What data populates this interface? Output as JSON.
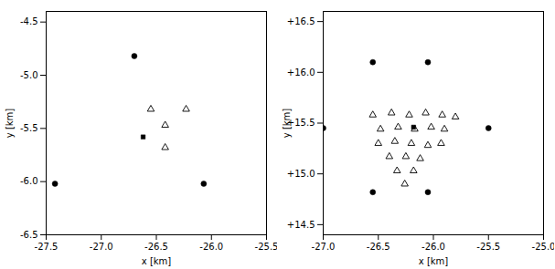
{
  "chart_data": [
    {
      "type": "scatter",
      "xlabel": "x [km]",
      "ylabel": "y [km]",
      "xlim": [
        -27.5,
        -25.5
      ],
      "ylim": [
        -6.5,
        -4.4
      ],
      "xticks": [
        -27.5,
        {
          "value": -27.0,
          "label": "-27.0"
        },
        -26.5,
        {
          "value": -26.0,
          "label": "-26.0"
        },
        -25.5
      ],
      "yticks": [
        -6.5,
        {
          "value": -6.0,
          "label": "-6.0"
        },
        -5.5,
        {
          "value": -5.0,
          "label": "-5.0"
        },
        -4.5
      ],
      "grid": false,
      "series": [
        {
          "marker": "circle",
          "color": "black",
          "x": [
            -26.7,
            -27.42,
            -26.07
          ],
          "values": [
            -4.82,
            -6.02,
            -6.02
          ]
        },
        {
          "marker": "triangle_open",
          "color": "black",
          "x": [
            -26.55,
            -26.42,
            -26.23,
            -26.42
          ],
          "values": [
            -5.32,
            -5.47,
            -5.32,
            -5.68
          ]
        },
        {
          "marker": "square",
          "color": "black",
          "x": [
            -26.62
          ],
          "values": [
            -5.58
          ]
        }
      ]
    },
    {
      "type": "scatter",
      "xlabel": "x [km]",
      "ylabel": "y [km]",
      "xlim": [
        -27.0,
        -25.0
      ],
      "ylim": [
        14.4,
        16.6
      ],
      "xticks": [
        {
          "value": -27.0,
          "label": "-27.0"
        },
        -26.5,
        {
          "value": -26.0,
          "label": "-26.0"
        },
        -25.5,
        {
          "value": -25.0,
          "label": "-25.0"
        }
      ],
      "yticks": [
        {
          "value": 14.5,
          "label": "+14.5"
        },
        {
          "value": 15.0,
          "label": "+15.0"
        },
        {
          "value": 15.5,
          "label": "+15.5"
        },
        {
          "value": 16.0,
          "label": "+16.0"
        },
        {
          "value": 16.5,
          "label": "+16.5"
        }
      ],
      "grid": false,
      "series": [
        {
          "marker": "circle",
          "color": "black",
          "x": [
            -26.55,
            -26.05,
            -27.0,
            -25.5,
            -26.55,
            -26.05
          ],
          "values": [
            16.1,
            16.1,
            15.45,
            15.45,
            14.82,
            14.82
          ]
        },
        {
          "marker": "triangle_open",
          "color": "black",
          "x": [
            -26.55,
            -26.38,
            -26.22,
            -26.07,
            -25.92,
            -25.8,
            -26.48,
            -26.32,
            -26.17,
            -26.02,
            -25.9,
            -26.5,
            -26.35,
            -26.2,
            -26.05,
            -25.93,
            -26.4,
            -26.25,
            -26.12,
            -26.33,
            -26.18,
            -26.26
          ],
          "values": [
            15.58,
            15.6,
            15.58,
            15.6,
            15.58,
            15.56,
            15.44,
            15.46,
            15.44,
            15.46,
            15.44,
            15.3,
            15.32,
            15.3,
            15.28,
            15.3,
            15.17,
            15.17,
            15.15,
            15.03,
            15.03,
            14.9
          ]
        },
        {
          "marker": "square",
          "color": "black",
          "x": [
            -26.18
          ],
          "values": [
            15.46
          ]
        }
      ]
    }
  ]
}
